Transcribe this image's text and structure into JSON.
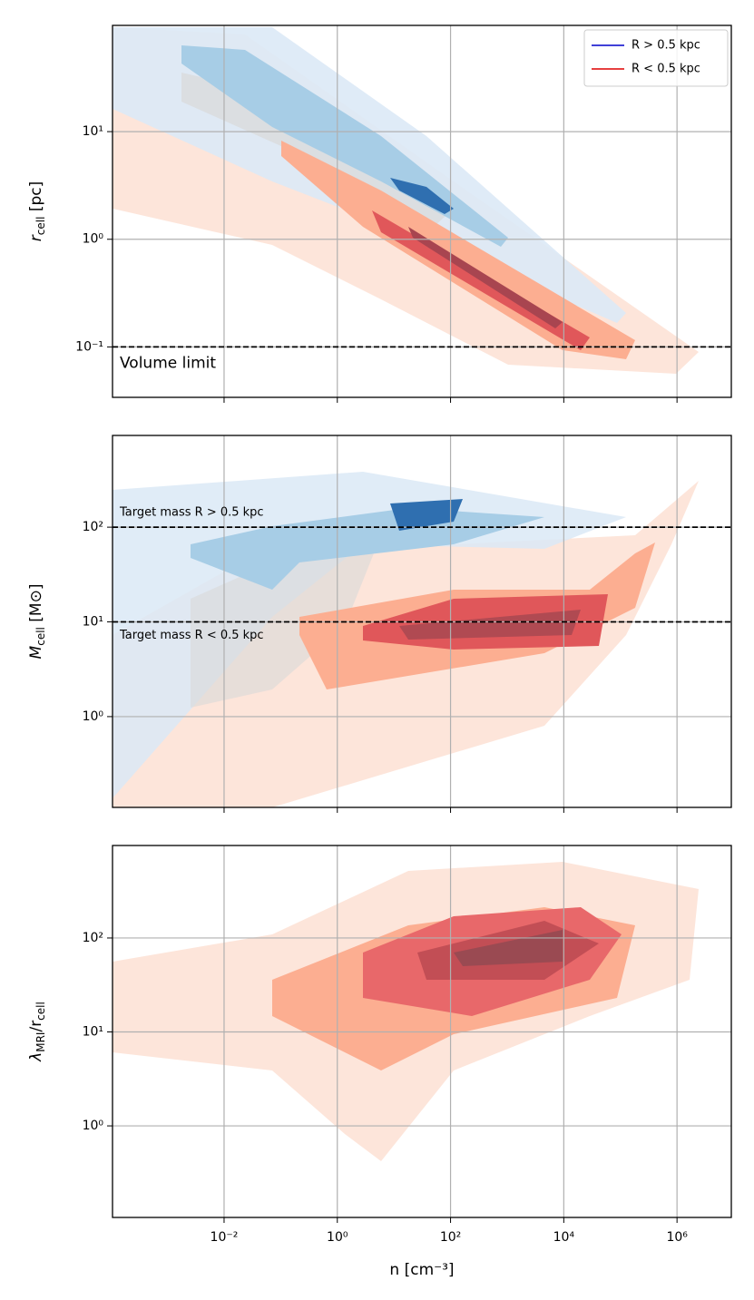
{
  "chart_data": [
    {
      "type": "contour",
      "ylabel": [
        {
          "text": "r"
        },
        {
          "text": "cell",
          "sub": true
        },
        {
          "text": " [pc]"
        }
      ],
      "xlim": [
        0.000107,
        9100000
      ],
      "xticks": [
        {
          "value": 0.01,
          "label": "10⁻²"
        },
        {
          "value": 1,
          "label": "10⁰"
        },
        {
          "value": 100,
          "label": "10²"
        },
        {
          "value": 10000,
          "label": "10⁴"
        },
        {
          "value": 1000000,
          "label": "10⁶"
        }
      ],
      "show_xticklabels": false,
      "log_x": true,
      "log_y": true,
      "grid": true,
      "ylim": [
        0.034,
        97
      ],
      "yticks": [
        {
          "value": 0.1,
          "label": "10⁻¹"
        },
        {
          "value": 1,
          "label": "10⁰"
        },
        {
          "value": 10,
          "label": "10¹"
        }
      ],
      "hlines": [
        {
          "value": 0.1,
          "label": "Volume limit"
        }
      ],
      "series": [
        {
          "name": "R > 0.5 kpc",
          "color": "#0000cc"
        },
        {
          "name": "R < 0.5 kpc",
          "color": "#dd0000"
        }
      ],
      "legend": "upper right"
    },
    {
      "type": "contour",
      "ylabel": [
        {
          "text": "M"
        },
        {
          "text": "cell",
          "sub": true
        },
        {
          "text": " [M⊙]"
        }
      ],
      "xlim": [
        0.000107,
        9100000
      ],
      "xticks": [
        {
          "value": 0.01,
          "label": "10⁻²"
        },
        {
          "value": 1,
          "label": "10⁰"
        },
        {
          "value": 100,
          "label": "10²"
        },
        {
          "value": 10000,
          "label": "10⁴"
        },
        {
          "value": 1000000,
          "label": "10⁶"
        }
      ],
      "show_xticklabels": false,
      "log_x": true,
      "log_y": true,
      "grid": true,
      "ylim": [
        0.11,
        930
      ],
      "yticks": [
        {
          "value": 1,
          "label": "10⁰"
        },
        {
          "value": 10,
          "label": "10¹"
        },
        {
          "value": 100,
          "label": "10²"
        }
      ],
      "hlines": [
        {
          "value": 100,
          "label": "Target mass R > 0.5 kpc"
        },
        {
          "value": 10,
          "label": "Target mass R < 0.5 kpc"
        }
      ]
    },
    {
      "type": "contour",
      "ylabel": [
        {
          "text": "λ"
        },
        {
          "text": "MRI",
          "sub": true
        },
        {
          "text": "/r"
        },
        {
          "text": "cell",
          "sub": true
        }
      ],
      "xlabel": "n [cm⁻³]",
      "xlim": [
        0.000107,
        9100000
      ],
      "xticks": [
        {
          "value": 0.01,
          "label": "10⁻²"
        },
        {
          "value": 1,
          "label": "10⁰"
        },
        {
          "value": 100,
          "label": "10²"
        },
        {
          "value": 10000,
          "label": "10⁴"
        },
        {
          "value": 1000000,
          "label": "10⁶"
        }
      ],
      "show_xticklabels": true,
      "log_x": true,
      "log_y": true,
      "grid": true,
      "ylim": [
        0.106,
        965
      ],
      "yticks": [
        {
          "value": 1,
          "label": "10⁰"
        },
        {
          "value": 10,
          "label": "10¹"
        },
        {
          "value": 100,
          "label": "10²"
        }
      ]
    }
  ]
}
